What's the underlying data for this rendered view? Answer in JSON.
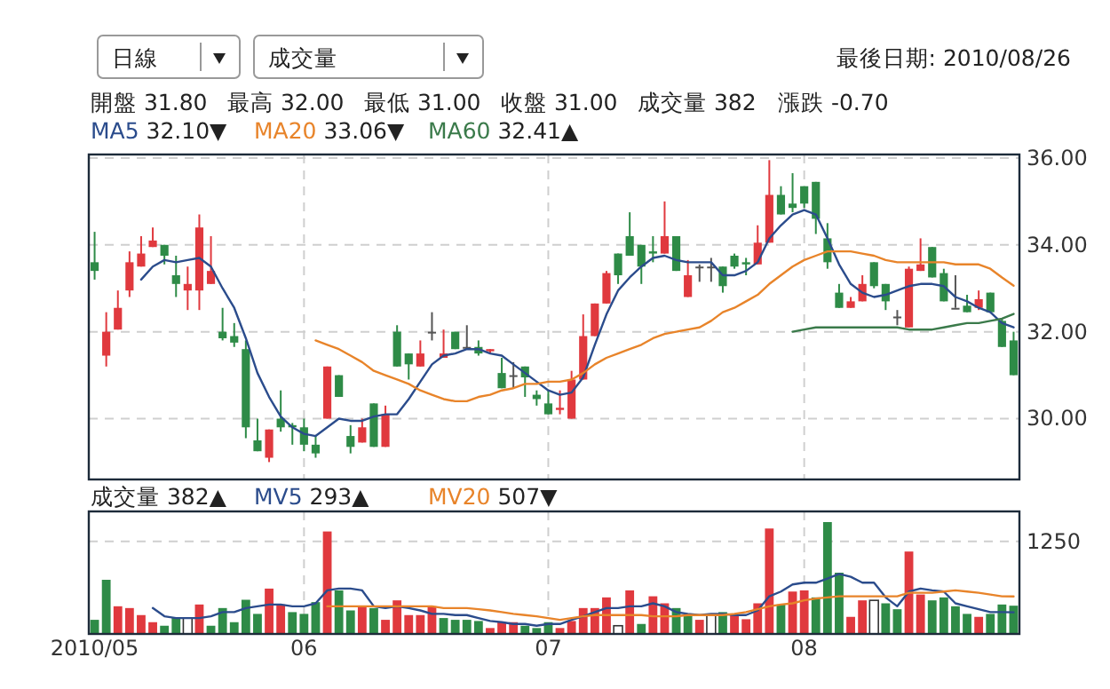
{
  "chart_data": [
    {
      "type": "candlestick",
      "annotations": [
        "日線",
        "成交量",
        "最後日期: 2010/08/26",
        "開盤 31.80",
        "最高 32.00",
        "最低 31.00",
        "收盤 31.00",
        "成交量 382",
        "漲跌 -0.70",
        "32.10▼",
        "33.06▼",
        "32.41▲"
      ],
      "categories": [
        "2010/05",
        null,
        null,
        null,
        null,
        null,
        null,
        null,
        null,
        null,
        null,
        null,
        null,
        null,
        null,
        null,
        null,
        null,
        "06",
        null,
        null,
        null,
        null,
        null,
        null,
        null,
        null,
        null,
        null,
        null,
        null,
        null,
        null,
        null,
        null,
        null,
        null,
        null,
        null,
        "07",
        null,
        null,
        null,
        null,
        null,
        null,
        null,
        null,
        null,
        null,
        null,
        null,
        null,
        null,
        null,
        null,
        null,
        null,
        null,
        null,
        null,
        "08",
        null,
        null,
        null,
        null,
        null,
        null,
        null,
        null,
        null,
        null,
        null,
        null,
        null,
        null,
        null,
        null,
        null,
        null
      ],
      "ohlc": [
        [
          33.6,
          34.3,
          33.2,
          33.4
        ],
        [
          31.45,
          32.45,
          31.2,
          32.0
        ],
        [
          32.05,
          32.95,
          32.05,
          32.55
        ],
        [
          32.95,
          33.85,
          32.8,
          33.6
        ],
        [
          33.5,
          34.2,
          33.5,
          33.8
        ],
        [
          33.95,
          34.4,
          33.95,
          34.1
        ],
        [
          34.0,
          34.0,
          33.55,
          33.75
        ],
        [
          33.3,
          33.75,
          32.8,
          33.1
        ],
        [
          32.95,
          33.5,
          32.5,
          33.1
        ],
        [
          32.95,
          34.7,
          32.5,
          34.4
        ],
        [
          33.1,
          34.2,
          33.1,
          33.4
        ],
        [
          32.0,
          32.55,
          31.8,
          31.85
        ],
        [
          31.9,
          32.2,
          31.65,
          31.75
        ],
        [
          31.6,
          31.8,
          29.55,
          29.8
        ],
        [
          29.5,
          30.0,
          29.25,
          29.25
        ],
        [
          29.1,
          29.75,
          29.0,
          29.75
        ],
        [
          30.0,
          30.65,
          29.7,
          29.8
        ],
        [
          29.85,
          29.9,
          29.4,
          29.8
        ],
        [
          29.8,
          30.0,
          29.25,
          29.4
        ],
        [
          29.4,
          29.6,
          29.1,
          29.2
        ],
        [
          30.0,
          31.2,
          30.0,
          31.2
        ],
        [
          31.0,
          31.0,
          30.5,
          30.5
        ],
        [
          29.6,
          29.85,
          29.2,
          29.35
        ],
        [
          29.45,
          30.0,
          29.45,
          29.8
        ],
        [
          30.35,
          30.35,
          29.35,
          29.35
        ],
        [
          29.35,
          30.3,
          29.35,
          30.1
        ],
        [
          32.0,
          32.15,
          31.2,
          31.2
        ],
        [
          31.5,
          31.5,
          30.9,
          31.25
        ],
        [
          31.2,
          31.8,
          31.2,
          31.5
        ],
        [
          32.0,
          32.45,
          31.8,
          32.0
        ],
        [
          31.4,
          32.05,
          31.4,
          31.5
        ],
        [
          32.0,
          32.0,
          31.6,
          31.6
        ],
        [
          31.65,
          32.15,
          31.6,
          31.65
        ],
        [
          31.65,
          31.8,
          31.45,
          31.5
        ],
        [
          31.55,
          31.6,
          31.5,
          31.6
        ],
        [
          31.05,
          31.4,
          30.7,
          30.7
        ],
        [
          31.0,
          31.3,
          30.7,
          31.0
        ],
        [
          31.2,
          31.2,
          30.5,
          30.95
        ],
        [
          30.55,
          30.65,
          30.3,
          30.45
        ],
        [
          30.35,
          30.65,
          30.1,
          30.1
        ],
        [
          30.2,
          30.65,
          30.1,
          30.25
        ],
        [
          30.0,
          31.1,
          30.0,
          30.9
        ],
        [
          30.9,
          32.4,
          30.9,
          31.9
        ],
        [
          31.9,
          32.65,
          31.9,
          32.65
        ],
        [
          32.65,
          33.4,
          32.65,
          33.35
        ],
        [
          33.8,
          33.8,
          33.1,
          33.3
        ],
        [
          34.2,
          34.75,
          33.75,
          33.75
        ],
        [
          34.0,
          34.0,
          33.1,
          33.5
        ],
        [
          33.85,
          34.2,
          33.6,
          33.8
        ],
        [
          33.8,
          35.0,
          33.8,
          34.2
        ],
        [
          34.2,
          34.2,
          33.4,
          33.4
        ],
        [
          32.8,
          33.65,
          32.8,
          33.3
        ],
        [
          33.5,
          33.55,
          33.15,
          33.5
        ],
        [
          33.5,
          33.7,
          33.15,
          33.5
        ],
        [
          33.5,
          33.5,
          32.9,
          33.05
        ],
        [
          33.75,
          33.8,
          33.45,
          33.5
        ],
        [
          33.6,
          33.7,
          33.3,
          33.55
        ],
        [
          33.55,
          34.45,
          33.55,
          34.05
        ],
        [
          34.05,
          35.95,
          34.05,
          35.15
        ],
        [
          35.15,
          35.35,
          34.7,
          34.7
        ],
        [
          34.95,
          35.65,
          34.75,
          34.85
        ],
        [
          35.35,
          35.35,
          34.85,
          34.95
        ],
        [
          35.45,
          35.45,
          34.25,
          34.6
        ],
        [
          34.15,
          34.5,
          33.45,
          33.6
        ],
        [
          32.9,
          33.1,
          32.55,
          32.55
        ],
        [
          32.55,
          32.8,
          32.55,
          32.7
        ],
        [
          32.7,
          33.3,
          32.7,
          33.1
        ],
        [
          33.6,
          33.6,
          33.0,
          33.05
        ],
        [
          33.1,
          33.1,
          32.5,
          32.7
        ],
        [
          32.35,
          32.5,
          32.15,
          32.35
        ],
        [
          32.1,
          33.5,
          32.1,
          33.45
        ],
        [
          33.4,
          34.15,
          33.4,
          33.55
        ],
        [
          33.95,
          33.95,
          33.25,
          33.25
        ],
        [
          33.35,
          33.45,
          32.7,
          32.7
        ],
        [
          32.55,
          33.3,
          32.55,
          32.55
        ],
        [
          32.6,
          32.85,
          32.45,
          32.45
        ],
        [
          32.55,
          32.95,
          32.5,
          32.75
        ],
        [
          32.9,
          32.9,
          32.45,
          32.45
        ],
        [
          32.25,
          32.3,
          31.65,
          31.65
        ],
        [
          31.8,
          32.0,
          31.0,
          31.0
        ]
      ],
      "colors": [
        "#2e8b47",
        "#e0393e",
        "#e0393e",
        "#e0393e",
        "#e0393e",
        "#e0393e",
        "#2e8b47",
        "#2e8b47",
        "#e0393e",
        "#e0393e",
        "#e0393e",
        "#2e8b47",
        "#2e8b47",
        "#2e8b47",
        "#2e8b47",
        "#e0393e",
        "#2e8b47",
        "#2e8b47",
        "#2e8b47",
        "#2e8b47",
        "#e0393e",
        "#2e8b47",
        "#2e8b47",
        "#e0393e",
        "#2e8b47",
        "#e0393e",
        "#2e8b47",
        "#2e8b47",
        "#e0393e",
        "#555555",
        "#e0393e",
        "#2e8b47",
        "#555555",
        "#2e8b47",
        "#e0393e",
        "#2e8b47",
        "#555555",
        "#2e8b47",
        "#2e8b47",
        "#2e8b47",
        "#e0393e",
        "#e0393e",
        "#e0393e",
        "#e0393e",
        "#e0393e",
        "#2e8b47",
        "#2e8b47",
        "#2e8b47",
        "#2e8b47",
        "#e0393e",
        "#2e8b47",
        "#e0393e",
        "#555555",
        "#555555",
        "#2e8b47",
        "#2e8b47",
        "#2e8b47",
        "#e0393e",
        "#e0393e",
        "#2e8b47",
        "#2e8b47",
        "#2e8b47",
        "#2e8b47",
        "#2e8b47",
        "#2e8b47",
        "#e0393e",
        "#e0393e",
        "#2e8b47",
        "#2e8b47",
        "#555555",
        "#e0393e",
        "#e0393e",
        "#2e8b47",
        "#2e8b47",
        "#555555",
        "#2e8b47",
        "#e0393e",
        "#2e8b47",
        "#2e8b47",
        "#2e8b47"
      ],
      "series": [
        {
          "name": "MA5",
          "type": "line",
          "color": "#2b4c8c",
          "values": [
            null,
            null,
            null,
            null,
            33.2,
            33.5,
            33.65,
            33.6,
            33.65,
            33.7,
            33.5,
            33.0,
            32.55,
            31.85,
            31.05,
            30.5,
            30.05,
            29.8,
            29.65,
            29.6,
            29.8,
            30.0,
            29.95,
            29.95,
            30.05,
            30.1,
            30.1,
            30.45,
            30.85,
            31.25,
            31.45,
            31.5,
            31.6,
            31.6,
            31.5,
            31.45,
            31.25,
            31.05,
            30.85,
            30.65,
            30.55,
            30.6,
            30.95,
            31.7,
            32.4,
            32.95,
            33.25,
            33.5,
            33.7,
            33.75,
            33.65,
            33.6,
            33.6,
            33.6,
            33.3,
            33.3,
            33.4,
            33.6,
            34.15,
            34.45,
            34.7,
            34.8,
            34.7,
            34.15,
            33.55,
            33.1,
            32.9,
            32.8,
            32.85,
            32.95,
            33.05,
            33.1,
            33.1,
            33.05,
            32.8,
            32.7,
            32.55,
            32.45,
            32.2,
            32.1
          ]
        },
        {
          "name": "MA20",
          "type": "line",
          "color": "#e8842a",
          "values": [
            null,
            null,
            null,
            null,
            null,
            null,
            null,
            null,
            null,
            null,
            null,
            null,
            null,
            null,
            null,
            null,
            null,
            null,
            null,
            31.8,
            31.7,
            31.6,
            31.45,
            31.3,
            31.1,
            31.0,
            30.9,
            30.8,
            30.65,
            30.55,
            30.45,
            30.4,
            30.4,
            30.5,
            30.55,
            30.65,
            30.7,
            30.8,
            30.8,
            30.85,
            30.85,
            30.9,
            31.05,
            31.25,
            31.4,
            31.5,
            31.6,
            31.7,
            31.85,
            31.95,
            32.0,
            32.05,
            32.1,
            32.25,
            32.45,
            32.55,
            32.7,
            32.85,
            33.1,
            33.3,
            33.5,
            33.65,
            33.75,
            33.85,
            33.85,
            33.85,
            33.8,
            33.75,
            33.65,
            33.6,
            33.6,
            33.6,
            33.6,
            33.6,
            33.55,
            33.55,
            33.55,
            33.45,
            33.25,
            33.06
          ]
        },
        {
          "name": "MA60",
          "type": "line",
          "color": "#3a7a4a",
          "values": [
            null,
            null,
            null,
            null,
            null,
            null,
            null,
            null,
            null,
            null,
            null,
            null,
            null,
            null,
            null,
            null,
            null,
            null,
            null,
            null,
            null,
            null,
            null,
            null,
            null,
            null,
            null,
            null,
            null,
            null,
            null,
            null,
            null,
            null,
            null,
            null,
            null,
            null,
            null,
            null,
            null,
            null,
            null,
            null,
            null,
            null,
            null,
            null,
            null,
            null,
            null,
            null,
            null,
            null,
            null,
            null,
            null,
            null,
            null,
            null,
            32.0,
            32.05,
            32.1,
            32.1,
            32.1,
            32.1,
            32.1,
            32.1,
            32.1,
            32.1,
            32.05,
            32.05,
            32.05,
            32.1,
            32.15,
            32.2,
            32.2,
            32.25,
            32.3,
            32.41
          ]
        }
      ],
      "ylim": [
        28.6,
        36.08
      ],
      "yticks": [
        {
          "value": 30,
          "label": "30.00"
        },
        {
          "value": 32,
          "label": "32.00"
        },
        {
          "value": 34,
          "label": "34.00"
        },
        {
          "value": 36,
          "label": "36.00"
        }
      ],
      "grid": true,
      "legend": "top left",
      "tick_labels": "y"
    },
    {
      "type": "bar",
      "annotations": [
        "382▲",
        "293▲",
        "507▼"
      ],
      "ylim": [
        0,
        1656
      ],
      "yticks": [
        1250
      ],
      "categories": [
        "2010/05",
        null,
        null,
        null,
        null,
        null,
        null,
        null,
        null,
        null,
        null,
        null,
        null,
        null,
        null,
        null,
        null,
        null,
        "06",
        null,
        null,
        null,
        null,
        null,
        null,
        null,
        null,
        null,
        null,
        null,
        null,
        null,
        null,
        null,
        null,
        null,
        null,
        null,
        null,
        "07",
        null,
        null,
        null,
        null,
        null,
        null,
        null,
        null,
        null,
        null,
        null,
        null,
        null,
        null,
        null,
        null,
        null,
        null,
        null,
        null,
        null,
        "08",
        null,
        null,
        null,
        null,
        null,
        null,
        null,
        null,
        null,
        null,
        null,
        null,
        null,
        null,
        null,
        null,
        null,
        null
      ],
      "series": [
        {
          "name": "成交量",
          "type": "bar",
          "values": [
            191,
            732,
            374,
            350,
            255,
            159,
            111,
            215,
            215,
            398,
            111,
            350,
            159,
            462,
            271,
            613,
            398,
            295,
            271,
            430,
            1385,
            589,
            318,
            374,
            350,
            191,
            454,
            255,
            255,
            374,
            215,
            191,
            191,
            175,
            80,
            159,
            159,
            111,
            80,
            159,
            80,
            175,
            350,
            350,
            494,
            111,
            589,
            135,
            509,
            414,
            350,
            255,
            191,
            255,
            295,
            255,
            199,
            414,
            1425,
            398,
            573,
            589,
            494,
            1512,
            828,
            231,
            454,
            454,
            414,
            334,
            1114,
            533,
            454,
            494,
            374,
            271,
            231,
            271,
            398,
            382
          ],
          "colors": [
            "#2e8b47",
            "#2e8b47",
            "#e0393e",
            "#e0393e",
            "#e0393e",
            "#e0393e",
            "#2e8b47",
            "#2e8b47",
            "#ffffff",
            "#e0393e",
            "#2e8b47",
            "#2e8b47",
            "#2e8b47",
            "#2e8b47",
            "#2e8b47",
            "#e0393e",
            "#e0393e",
            "#2e8b47",
            "#2e8b47",
            "#2e8b47",
            "#e0393e",
            "#2e8b47",
            "#2e8b47",
            "#e0393e",
            "#2e8b47",
            "#e0393e",
            "#e0393e",
            "#e0393e",
            "#e0393e",
            "#e0393e",
            "#2e8b47",
            "#2e8b47",
            "#2e8b47",
            "#2e8b47",
            "#e0393e",
            "#e0393e",
            "#e0393e",
            "#2e8b47",
            "#2e8b47",
            "#2e8b47",
            "#e0393e",
            "#e0393e",
            "#e0393e",
            "#e0393e",
            "#e0393e",
            "#ffffff",
            "#e0393e",
            "#2e8b47",
            "#e0393e",
            "#e0393e",
            "#2e8b47",
            "#2e8b47",
            "#e0393e",
            "#ffffff",
            "#2e8b47",
            "#e0393e",
            "#e0393e",
            "#e0393e",
            "#e0393e",
            "#2e8b47",
            "#e0393e",
            "#e0393e",
            "#2e8b47",
            "#2e8b47",
            "#2e8b47",
            "#e0393e",
            "#e0393e",
            "#ffffff",
            "#2e8b47",
            "#2e8b47",
            "#e0393e",
            "#e0393e",
            "#2e8b47",
            "#2e8b47",
            "#2e8b47",
            "#2e8b47",
            "#e0393e",
            "#2e8b47",
            "#2e8b47",
            "#2e8b47"
          ]
        },
        {
          "name": "MV5",
          "type": "line",
          "color": "#2b4c8c",
          "values": [
            null,
            null,
            null,
            null,
            null,
            350,
            239,
            215,
            215,
            215,
            239,
            295,
            295,
            350,
            374,
            398,
            398,
            374,
            374,
            414,
            589,
            613,
            613,
            589,
            374,
            350,
            374,
            350,
            318,
            271,
            271,
            255,
            255,
            215,
            175,
            159,
            135,
            135,
            111,
            135,
            135,
            191,
            239,
            295,
            350,
            350,
            374,
            374,
            414,
            374,
            295,
            271,
            255,
            271,
            271,
            255,
            255,
            318,
            509,
            573,
            669,
            693,
            693,
            748,
            812,
            772,
            693,
            693,
            494,
            374,
            573,
            613,
            589,
            573,
            414,
            374,
            334,
            295,
            295,
            293
          ]
        },
        {
          "name": "MV20",
          "type": "line",
          "color": "#e8842a",
          "values": [
            null,
            null,
            null,
            null,
            null,
            null,
            null,
            null,
            null,
            null,
            null,
            null,
            null,
            null,
            null,
            null,
            null,
            null,
            null,
            null,
            374,
            374,
            374,
            374,
            374,
            374,
            374,
            374,
            374,
            374,
            350,
            350,
            350,
            334,
            318,
            295,
            271,
            255,
            239,
            215,
            191,
            215,
            239,
            255,
            255,
            255,
            255,
            255,
            239,
            239,
            239,
            255,
            255,
            255,
            255,
            271,
            295,
            334,
            374,
            398,
            414,
            454,
            478,
            494,
            509,
            509,
            509,
            509,
            509,
            509,
            557,
            557,
            557,
            573,
            589,
            573,
            557,
            533,
            509,
            507
          ]
        }
      ],
      "grid": true,
      "legend": "top left"
    }
  ]
}
